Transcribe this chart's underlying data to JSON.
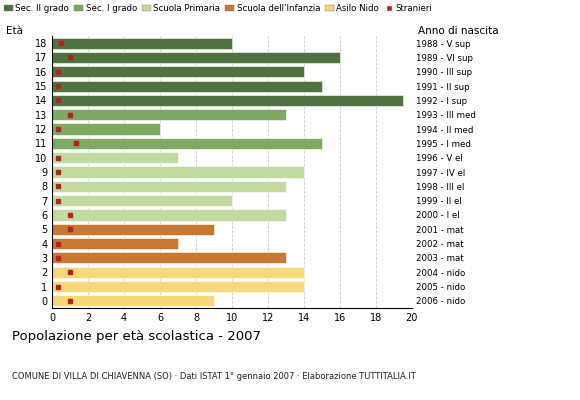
{
  "ages": [
    18,
    17,
    16,
    15,
    14,
    13,
    12,
    11,
    10,
    9,
    8,
    7,
    6,
    5,
    4,
    3,
    2,
    1,
    0
  ],
  "years": [
    "1988 - V sup",
    "1989 - VI sup",
    "1990 - III sup",
    "1991 - II sup",
    "1992 - I sup",
    "1993 - III med",
    "1994 - II med",
    "1995 - I med",
    "1996 - V el",
    "1997 - IV el",
    "1998 - III el",
    "1999 - II el",
    "2000 - I el",
    "2001 - mat",
    "2002 - mat",
    "2003 - mat",
    "2004 - nido",
    "2005 - nido",
    "2006 - nido"
  ],
  "bar_values": [
    10,
    16,
    14,
    15,
    19.5,
    13,
    6,
    15,
    7,
    14,
    13,
    10,
    13,
    9,
    7,
    13,
    14,
    14,
    9
  ],
  "bar_colors": [
    "#4e7340",
    "#4e7340",
    "#4e7340",
    "#4e7340",
    "#4e7340",
    "#7fa864",
    "#7fa864",
    "#7fa864",
    "#c2d9a0",
    "#c2d9a0",
    "#c2d9a0",
    "#c2d9a0",
    "#c2d9a0",
    "#c87832",
    "#c87832",
    "#c87832",
    "#f5d87a",
    "#f5d87a",
    "#f5d87a"
  ],
  "stranieri_values": [
    0.5,
    1.0,
    0.3,
    0.3,
    0.3,
    1.0,
    0.3,
    1.3,
    0.3,
    0.3,
    0.3,
    0.3,
    1.0,
    1.0,
    0.3,
    0.3,
    1.0,
    0.3,
    1.0
  ],
  "legend_labels": [
    "Sec. II grado",
    "Sec. I grado",
    "Scuola Primaria",
    "Scuola dell'Infanzia",
    "Asilo Nido",
    "Stranieri"
  ],
  "legend_colors": [
    "#4e7340",
    "#7fa864",
    "#c2d9a0",
    "#c87832",
    "#f5d87a",
    "#b22222"
  ],
  "title": "Popolazione per età scolastica - 2007",
  "subtitle": "COMUNE DI VILLA DI CHIAVENNA (SO) · Dati ISTAT 1° gennaio 2007 · Elaborazione TUTTITALIA.IT",
  "label_eta": "Età",
  "label_anno": "Anno di nascita",
  "xlim": [
    0,
    20
  ],
  "xticks": [
    0,
    2,
    4,
    6,
    8,
    10,
    12,
    14,
    16,
    18,
    20
  ],
  "background_color": "#ffffff",
  "grid_color": "#cccccc"
}
